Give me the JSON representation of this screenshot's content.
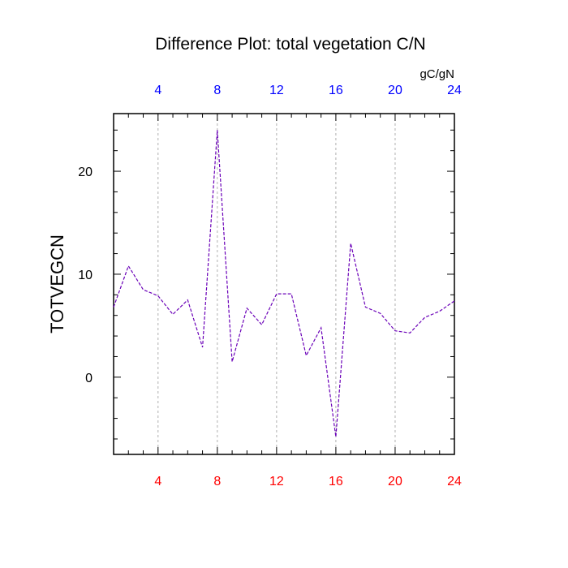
{
  "chart_data": {
    "type": "line",
    "title": "Difference Plot: total vegetation C/N",
    "units": "gC/gN",
    "ylabel": "TOTVEGCN",
    "xlabel": "",
    "xlim": [
      1,
      24
    ],
    "ylim": [
      -7.5,
      25.6
    ],
    "grid": "vertical dashed at labeled x ticks",
    "x_ticks": [
      4,
      8,
      12,
      16,
      20,
      24
    ],
    "x_tick_labels": [
      "4",
      "8",
      "12",
      "16",
      "20",
      "24"
    ],
    "y_ticks": [
      0,
      10,
      20
    ],
    "y_tick_labels": [
      "0",
      "10",
      "20"
    ],
    "bottom_tick_color": "#ff0000",
    "top_tick_color": "#0000ff",
    "line_color": "#6a00b8",
    "series": [
      {
        "x": [
          1,
          2,
          3,
          4,
          5,
          6,
          7,
          8,
          9,
          10,
          11,
          12,
          13,
          14,
          15,
          16,
          17,
          18,
          19,
          20,
          21,
          22,
          23,
          24
        ],
        "values": [
          6.8,
          10.8,
          8.5,
          7.9,
          6.1,
          7.5,
          2.9,
          24.0,
          1.5,
          6.7,
          5.1,
          8.1,
          8.1,
          2.1,
          4.8,
          -5.8,
          13.0,
          6.8,
          6.2,
          4.5,
          4.3,
          5.8,
          6.4,
          7.4
        ]
      }
    ]
  }
}
